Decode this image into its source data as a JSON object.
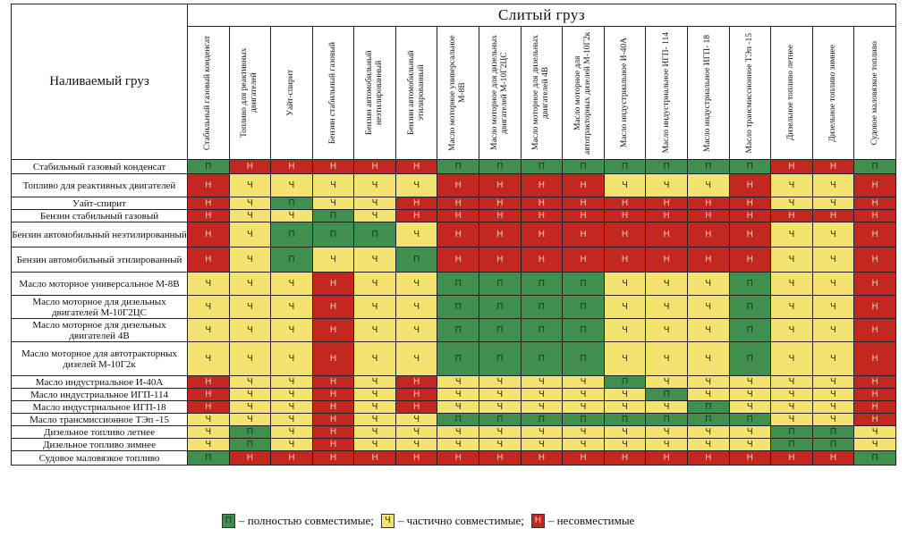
{
  "header": {
    "row_header": "Наливаемый груз",
    "col_group": "Слитый груз",
    "columns": [
      "Стабильный газовый конденсат",
      "Топливо для реактивных двигателей",
      "Уайт-спирит",
      "Бензин стабильный газовый",
      "Бензин автомобильный неэтилированный",
      "Бензин автомобильный этилированный",
      "Масло моторное универсальное М-8В",
      "Масло моторное для дизельных двигателей М-10Г2ЦС",
      "Масло моторное для дизельных двигателей 4В",
      "Масло моторное для автотракторных дизелей М-10Г2к",
      "Масло индустриальное И-40А",
      "Масло индустриальное ИГП- 114",
      "Масло индустриальное ИГП- 18",
      "Масло трансмиссионное ТЭп -15",
      "Дизельное топливо летнее",
      "Дизельное топливо зимнее",
      "Судовое маловязкое топливо"
    ]
  },
  "rows": [
    {
      "label": "Стабильный газовый конденсат",
      "cells": [
        "П",
        "Н",
        "Н",
        "Н",
        "Н",
        "Н",
        "П",
        "П",
        "П",
        "П",
        "П",
        "П",
        "П",
        "П",
        "Н",
        "Н",
        "П"
      ]
    },
    {
      "label": "Топливо для реактивных двигателей",
      "cells": [
        "Н",
        "Ч",
        "Ч",
        "Ч",
        "Ч",
        "Ч",
        "Н",
        "Н",
        "Н",
        "Н",
        "Ч",
        "Ч",
        "Ч",
        "Н",
        "Ч",
        "Ч",
        "Н"
      ]
    },
    {
      "label": "Уайт-спирит",
      "cells": [
        "Н",
        "Ч",
        "П",
        "Ч",
        "Ч",
        "Н",
        "Н",
        "Н",
        "Н",
        "Н",
        "Н",
        "Н",
        "Н",
        "Н",
        "Ч",
        "Ч",
        "Н"
      ]
    },
    {
      "label": "Бензин стабильный газовый",
      "cells": [
        "Н",
        "Ч",
        "Ч",
        "П",
        "Ч",
        "Н",
        "Н",
        "Н",
        "Н",
        "Н",
        "Н",
        "Н",
        "Н",
        "Н",
        "Н",
        "Н",
        "Н"
      ]
    },
    {
      "label": "Бензин автомобильный нeэтилированный",
      "cells": [
        "Н",
        "Ч",
        "П",
        "П",
        "П",
        "Ч",
        "Н",
        "Н",
        "Н",
        "Н",
        "Н",
        "Н",
        "Н",
        "Н",
        "Ч",
        "Ч",
        "Н"
      ]
    },
    {
      "label": "Бензин автомобильный этилированный",
      "cells": [
        "Н",
        "Ч",
        "П",
        "Ч",
        "Ч",
        "П",
        "Н",
        "Н",
        "Н",
        "Н",
        "Н",
        "Н",
        "Н",
        "Н",
        "Ч",
        "Ч",
        "Н"
      ]
    },
    {
      "label": "Масло моторное универсальное М-8В",
      "cells": [
        "Ч",
        "Ч",
        "Ч",
        "Н",
        "Ч",
        "Ч",
        "П",
        "П",
        "П",
        "П",
        "Ч",
        "Ч",
        "Ч",
        "П",
        "Ч",
        "Ч",
        "Н"
      ]
    },
    {
      "label": "Масло моторное для дизельных двигателей М-10Г2ЦС",
      "cells": [
        "Ч",
        "Ч",
        "Ч",
        "Н",
        "Ч",
        "Ч",
        "П",
        "П",
        "П",
        "П",
        "Ч",
        "Ч",
        "Ч",
        "П",
        "Ч",
        "Ч",
        "Н"
      ]
    },
    {
      "label": "Масло моторное для дизельных двигателей 4В",
      "cells": [
        "Ч",
        "Ч",
        "Ч",
        "Н",
        "Ч",
        "Ч",
        "П",
        "П",
        "П",
        "П",
        "Ч",
        "Ч",
        "Ч",
        "П",
        "Ч",
        "Ч",
        "Н"
      ]
    },
    {
      "label": "Масло моторное для автотракторных дизелей М-10Г2к",
      "cells": [
        "Ч",
        "Ч",
        "Ч",
        "Н",
        "Ч",
        "Ч",
        "П",
        "П",
        "П",
        "П",
        "Ч",
        "Ч",
        "Ч",
        "П",
        "Ч",
        "Ч",
        "Н"
      ]
    },
    {
      "label": "Масло индустриальное И-40А",
      "cells": [
        "Н",
        "Ч",
        "Ч",
        "Н",
        "Ч",
        "Н",
        "Ч",
        "Ч",
        "Ч",
        "Ч",
        "П",
        "Ч",
        "Ч",
        "Ч",
        "Ч",
        "Ч",
        "Н"
      ]
    },
    {
      "label": "Масло индустриальное ИГП-114",
      "cells": [
        "Н",
        "Ч",
        "Ч",
        "Н",
        "Ч",
        "Н",
        "Ч",
        "Ч",
        "Ч",
        "Ч",
        "Ч",
        "П",
        "Ч",
        "Ч",
        "Ч",
        "Ч",
        "Н"
      ]
    },
    {
      "label": "Масло индустриальное ИГП-18",
      "cells": [
        "Н",
        "Ч",
        "Ч",
        "Н",
        "Ч",
        "Н",
        "Ч",
        "Ч",
        "Ч",
        "Ч",
        "Ч",
        "Ч",
        "П",
        "Ч",
        "Ч",
        "Ч",
        "Н"
      ]
    },
    {
      "label": "Масло трансмиссионное ТЭп -15",
      "cells": [
        "Ч",
        "Ч",
        "Ч",
        "Н",
        "Ч",
        "Ч",
        "П",
        "П",
        "П",
        "П",
        "П",
        "П",
        "П",
        "П",
        "Ч",
        "Ч",
        "Н"
      ]
    },
    {
      "label": "Дизельное топливо летнее",
      "cells": [
        "Ч",
        "П",
        "Ч",
        "Н",
        "Ч",
        "Ч",
        "Ч",
        "Ч",
        "Ч",
        "Ч",
        "Ч",
        "Ч",
        "Ч",
        "Ч",
        "П",
        "П",
        "Ч"
      ]
    },
    {
      "label": "Дизельное топливо зимнее",
      "cells": [
        "Ч",
        "П",
        "Ч",
        "Н",
        "Ч",
        "Ч",
        "Ч",
        "Ч",
        "Ч",
        "Ч",
        "Ч",
        "Ч",
        "Ч",
        "Ч",
        "П",
        "П",
        "Ч"
      ]
    },
    {
      "label": "Судовое маловязкое топливо",
      "cells": [
        "П",
        "Н",
        "Н",
        "Н",
        "Н",
        "Н",
        "Н",
        "Н",
        "Н",
        "Н",
        "Н",
        "Н",
        "Н",
        "Н",
        "Н",
        "Н",
        "П"
      ]
    }
  ],
  "legend": {
    "P_sym": "П",
    "P_text": " – полностью совместимые;",
    "CH_sym": "Ч",
    "CH_text": " – частично совместимые;",
    "N_sym": "Н",
    "N_text": " – несовместимые"
  },
  "colors": {
    "compatible": "#3f8f4f",
    "partial": "#f4e36e",
    "incompatible": "#c4271f"
  }
}
